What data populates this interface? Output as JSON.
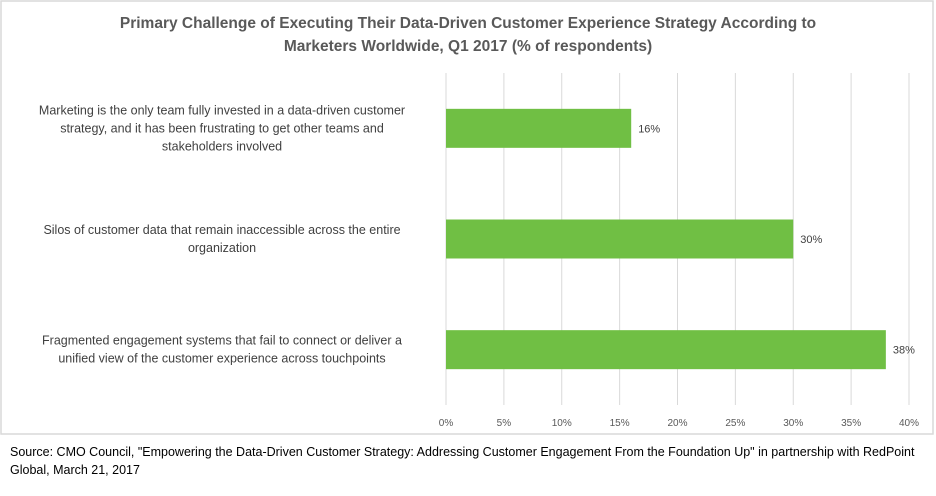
{
  "chart_data": {
    "type": "bar",
    "orientation": "horizontal",
    "title": "Primary Challenge of Executing Their Data-Driven Customer Experience Strategy According to Marketers Worldwide, Q1 2017 (% of respondents)",
    "title_lines": [
      "Primary Challenge of Executing Their Data-Driven Customer Experience Strategy According to",
      "Marketers Worldwide, Q1 2017 (% of respondents)"
    ],
    "categories": [
      [
        "Marketing is the only team fully invested in a data-driven customer",
        "strategy, and it has been frustrating to get other teams and",
        "stakeholders involved"
      ],
      [
        "Silos of customer data that remain inaccessible across the entire",
        "organization"
      ],
      [
        "Fragmented engagement systems that fail to connect or deliver a",
        "unified view of the customer experience across touchpoints"
      ]
    ],
    "values": [
      16,
      30,
      38
    ],
    "data_labels": [
      "16%",
      "30%",
      "38%"
    ],
    "xlim": [
      0,
      40
    ],
    "xticks": [
      0,
      5,
      10,
      15,
      20,
      25,
      30,
      35,
      40
    ],
    "xtick_labels": [
      "0%",
      "5%",
      "10%",
      "15%",
      "20%",
      "25%",
      "30%",
      "35%",
      "40%"
    ],
    "grid": true,
    "legend": "none",
    "bar_color": "#70BF44",
    "grid_color": "#D9D9D9"
  },
  "source": "Source: CMO Council, \"Empowering the Data-Driven Customer Strategy: Addressing Customer Engagement From the Foundation Up\" in partnership with RedPoint Global, March 21, 2017"
}
